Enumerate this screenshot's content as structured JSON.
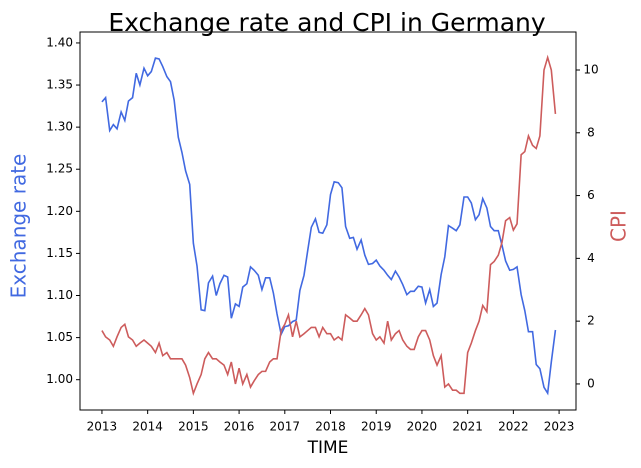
{
  "chart_data": {
    "type": "line",
    "title": "Exchange rate and CPI in Germany",
    "xlabel": "TIME",
    "ylabel": "Exchange rate",
    "y2label": "CPI",
    "x": [
      2013.0,
      2013.08,
      2013.17,
      2013.25,
      2013.33,
      2013.42,
      2013.5,
      2013.58,
      2013.67,
      2013.75,
      2013.83,
      2013.92,
      2014.0,
      2014.08,
      2014.17,
      2014.25,
      2014.33,
      2014.42,
      2014.5,
      2014.58,
      2014.67,
      2014.75,
      2014.83,
      2014.92,
      2015.0,
      2015.08,
      2015.17,
      2015.25,
      2015.33,
      2015.42,
      2015.5,
      2015.58,
      2015.67,
      2015.75,
      2015.83,
      2015.92,
      2016.0,
      2016.08,
      2016.17,
      2016.25,
      2016.33,
      2016.42,
      2016.5,
      2016.58,
      2016.67,
      2016.75,
      2016.83,
      2016.92,
      2017.0,
      2017.08,
      2017.17,
      2017.25,
      2017.33,
      2017.42,
      2017.5,
      2017.58,
      2017.67,
      2017.75,
      2017.83,
      2017.92,
      2018.0,
      2018.08,
      2018.17,
      2018.25,
      2018.33,
      2018.42,
      2018.5,
      2018.58,
      2018.67,
      2018.75,
      2018.83,
      2018.92,
      2019.0,
      2019.08,
      2019.17,
      2019.25,
      2019.33,
      2019.42,
      2019.5,
      2019.58,
      2019.67,
      2019.75,
      2019.83,
      2019.92,
      2020.0,
      2020.08,
      2020.17,
      2020.25,
      2020.33,
      2020.42,
      2020.5,
      2020.58,
      2020.67,
      2020.75,
      2020.83,
      2020.92,
      2021.0,
      2021.08,
      2021.17,
      2021.25,
      2021.33,
      2021.42,
      2021.5,
      2021.58,
      2021.67,
      2021.75,
      2021.83,
      2021.92,
      2022.0,
      2022.08,
      2022.17,
      2022.25,
      2022.33,
      2022.42,
      2022.5,
      2022.58,
      2022.67,
      2022.75,
      2022.83,
      2022.92
    ],
    "series": [
      {
        "name": "Exchange rate",
        "color": "#4169e1",
        "values": [
          1.33,
          1.335,
          1.296,
          1.303,
          1.298,
          1.318,
          1.308,
          1.331,
          1.335,
          1.364,
          1.35,
          1.37,
          1.361,
          1.366,
          1.382,
          1.381,
          1.372,
          1.36,
          1.354,
          1.332,
          1.288,
          1.27,
          1.248,
          1.232,
          1.162,
          1.135,
          1.083,
          1.082,
          1.115,
          1.123,
          1.1,
          1.114,
          1.124,
          1.122,
          1.073,
          1.09,
          1.087,
          1.11,
          1.114,
          1.134,
          1.13,
          1.124,
          1.107,
          1.121,
          1.121,
          1.103,
          1.078,
          1.054,
          1.063,
          1.064,
          1.069,
          1.071,
          1.106,
          1.124,
          1.153,
          1.181,
          1.191,
          1.175,
          1.174,
          1.184,
          1.22,
          1.235,
          1.234,
          1.228,
          1.182,
          1.168,
          1.169,
          1.155,
          1.166,
          1.148,
          1.137,
          1.138,
          1.142,
          1.135,
          1.13,
          1.124,
          1.119,
          1.129,
          1.122,
          1.113,
          1.101,
          1.105,
          1.105,
          1.111,
          1.11,
          1.091,
          1.107,
          1.087,
          1.091,
          1.125,
          1.146,
          1.183,
          1.18,
          1.177,
          1.184,
          1.217,
          1.217,
          1.21,
          1.19,
          1.196,
          1.215,
          1.204,
          1.182,
          1.177,
          1.177,
          1.16,
          1.141,
          1.13,
          1.131,
          1.134,
          1.101,
          1.082,
          1.057,
          1.057,
          1.018,
          1.013,
          0.991,
          0.984,
          1.021,
          1.059
        ]
      },
      {
        "name": "CPI",
        "color": "#cd5c5c",
        "axis": "y2",
        "values": [
          1.7,
          1.5,
          1.4,
          1.2,
          1.5,
          1.8,
          1.9,
          1.5,
          1.4,
          1.2,
          1.3,
          1.4,
          1.3,
          1.2,
          1.0,
          1.3,
          0.9,
          1.0,
          0.8,
          0.8,
          0.8,
          0.8,
          0.6,
          0.2,
          -0.3,
          0.0,
          0.3,
          0.8,
          1.0,
          0.8,
          0.8,
          0.7,
          0.6,
          0.3,
          0.7,
          0.0,
          0.5,
          0.0,
          0.3,
          -0.1,
          0.1,
          0.3,
          0.4,
          0.4,
          0.7,
          0.8,
          0.8,
          1.7,
          1.9,
          2.2,
          1.5,
          2.0,
          1.5,
          1.6,
          1.7,
          1.8,
          1.8,
          1.5,
          1.8,
          1.6,
          1.6,
          1.4,
          1.5,
          1.4,
          2.2,
          2.1,
          2.0,
          2.0,
          2.2,
          2.4,
          2.2,
          1.6,
          1.4,
          1.5,
          1.3,
          2.0,
          1.4,
          1.6,
          1.7,
          1.4,
          1.2,
          1.1,
          1.1,
          1.5,
          1.7,
          1.7,
          1.4,
          0.9,
          0.6,
          0.9,
          -0.1,
          0.0,
          -0.2,
          -0.2,
          -0.3,
          -0.3,
          1.0,
          1.3,
          1.7,
          2.0,
          2.5,
          2.3,
          3.8,
          3.9,
          4.1,
          4.5,
          5.2,
          5.3,
          4.9,
          5.1,
          7.3,
          7.4,
          7.9,
          7.6,
          7.5,
          7.9,
          10.0,
          10.4,
          10.0,
          8.6
        ]
      }
    ],
    "xlim": [
      2012.52,
      2023.37
    ],
    "xticks": [
      2013,
      2014,
      2015,
      2016,
      2017,
      2018,
      2019,
      2020,
      2021,
      2022,
      2023
    ],
    "ylim": [
      0.964,
      1.413
    ],
    "yticks": [
      {
        "value": 1.0,
        "label": "1.00"
      },
      {
        "value": 1.05,
        "label": "1.05"
      },
      {
        "value": 1.1,
        "label": "1.10"
      },
      {
        "value": 1.15,
        "label": "1.15"
      },
      {
        "value": 1.2,
        "label": "1.20"
      },
      {
        "value": 1.25,
        "label": "1.25"
      },
      {
        "value": 1.3,
        "label": "1.30"
      },
      {
        "value": 1.35,
        "label": "1.35"
      },
      {
        "value": 1.4,
        "label": "1.40"
      }
    ],
    "y2lim": [
      -0.83,
      11.21
    ],
    "y2ticks": [
      0,
      2,
      4,
      6,
      8,
      10
    ]
  }
}
